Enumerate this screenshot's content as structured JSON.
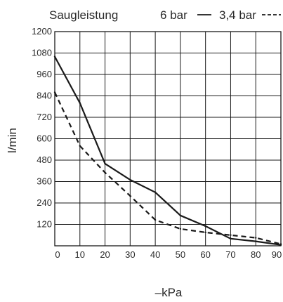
{
  "chart_data": {
    "type": "line",
    "title": "Saugleistung",
    "xlabel": "–kPa",
    "ylabel": "l/min",
    "x": [
      0,
      10,
      20,
      30,
      40,
      50,
      60,
      70,
      80,
      90
    ],
    "xlim": [
      0,
      90
    ],
    "ylim": [
      0,
      1200
    ],
    "xticks": [
      "0",
      "10",
      "20",
      "30",
      "40",
      "50",
      "60",
      "70",
      "80",
      "90"
    ],
    "yticks": [
      "120",
      "240",
      "360",
      "480",
      "600",
      "720",
      "840",
      "960",
      "1080",
      "1200"
    ],
    "grid": true,
    "legend": "top",
    "series": [
      {
        "name": "6 bar",
        "style": "solid",
        "color": "#1a1a1a",
        "x": [
          0,
          10,
          20,
          30,
          40,
          50,
          60,
          70,
          80,
          90
        ],
        "values": [
          1060,
          800,
          460,
          370,
          300,
          170,
          110,
          40,
          25,
          5
        ]
      },
      {
        "name": "3,4 bar",
        "style": "dashed",
        "color": "#1a1a1a",
        "x": [
          0,
          10,
          20,
          30,
          40,
          50,
          60,
          70,
          80,
          90
        ],
        "values": [
          860,
          560,
          410,
          280,
          145,
          95,
          75,
          60,
          45,
          10
        ]
      }
    ]
  }
}
